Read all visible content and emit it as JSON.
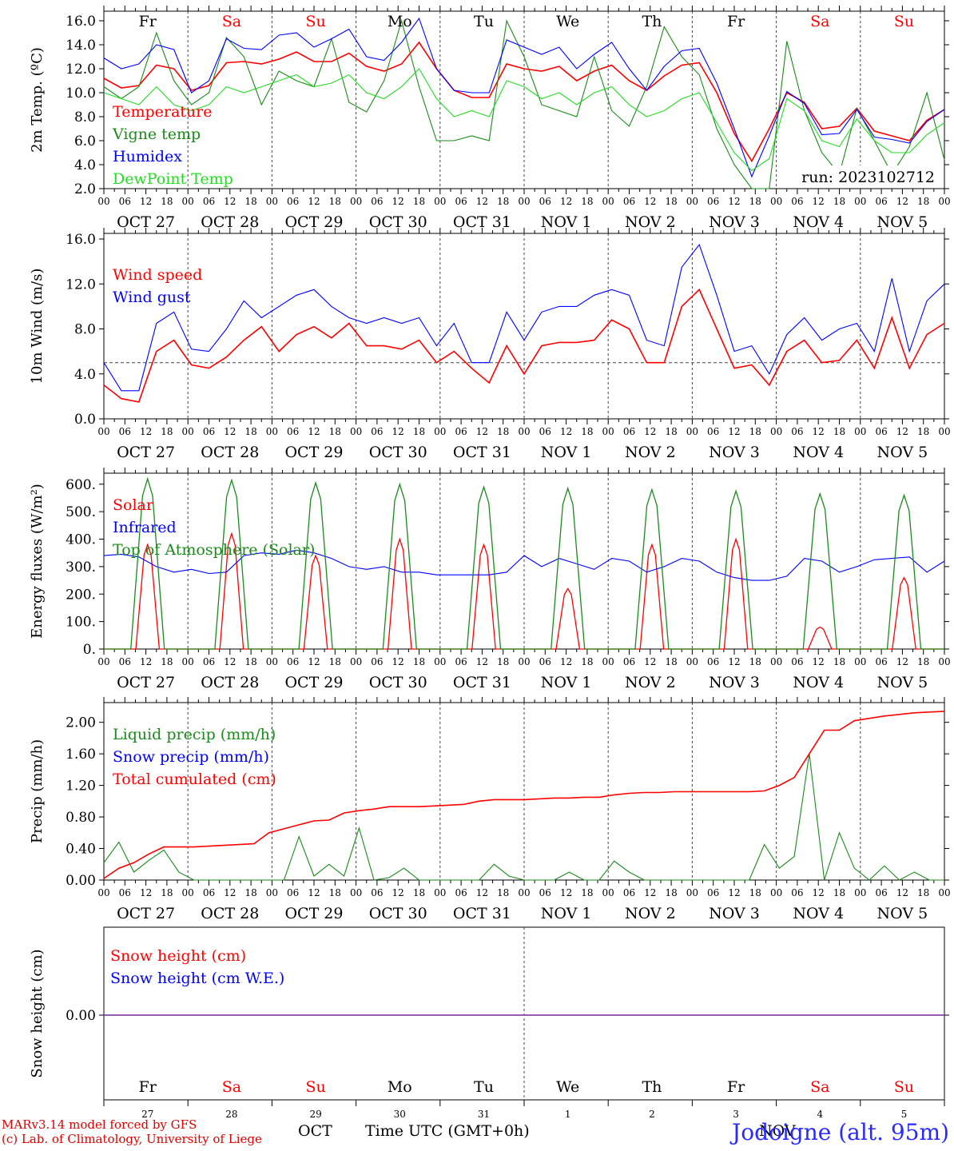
{
  "run_label": "run: 2023102712",
  "footer": {
    "credits_line1": "MARv3.14 model forced by GFS",
    "credits_line2": "(c) Lab. of Climatology, University of Liege",
    "month1": "OCT",
    "time_axis": "Time UTC (GMT+0h)",
    "month2": "NOV",
    "station": "Jodoigne (alt. 95m)"
  },
  "time_axis": {
    "hour_ticks": [
      "00",
      "06",
      "12",
      "18"
    ],
    "dates": [
      "OCT 27",
      "OCT 28",
      "OCT 29",
      "OCT 30",
      "OCT 31",
      "NOV  1",
      "NOV  2",
      "NOV  3",
      "NOV  4",
      "NOV  5"
    ],
    "weekdays": [
      "Fr",
      "Sa",
      "Su",
      "Mo",
      "Tu",
      "We",
      "Th",
      "Fr",
      "Sa",
      "Su"
    ],
    "weekend_flags": [
      false,
      true,
      true,
      false,
      false,
      false,
      false,
      false,
      true,
      true
    ],
    "day_numbers": [
      "27",
      "28",
      "29",
      "30",
      "31",
      "1",
      "2",
      "3",
      "4",
      "5"
    ]
  },
  "colors": {
    "red": "#ff0000",
    "green": "#1a8a1a",
    "blue": "#0000ff",
    "lightgreen": "#22dd22",
    "purple": "#8844aa"
  },
  "chart_data": [
    {
      "type": "line",
      "ylabel": "2m Temp. (ºC)",
      "ylim": [
        2.0,
        16.8
      ],
      "yticks": [
        "2.0",
        "4.0",
        "6.0",
        "8.0",
        "10.0",
        "12.0",
        "14.0",
        "16.0"
      ],
      "x_unit": "hours since OCT 27 00 UTC, 6-hourly",
      "series": [
        {
          "name": "Temperature",
          "color": "red",
          "values": [
            11.2,
            10.4,
            10.6,
            12.3,
            12.0,
            10.2,
            10.6,
            12.5,
            12.6,
            12.4,
            12.8,
            13.4,
            12.6,
            12.6,
            13.3,
            12.2,
            11.8,
            12.4,
            14.2,
            12.0,
            10.2,
            9.6,
            9.6,
            12.4,
            12.0,
            11.8,
            12.2,
            11.0,
            11.8,
            12.3,
            11.0,
            10.2,
            11.4,
            12.3,
            12.5,
            10.0,
            6.6,
            4.3,
            7.0,
            10.0,
            9.2,
            7.0,
            7.2,
            8.7,
            6.8,
            6.4,
            6.0,
            7.7,
            8.6
          ]
        },
        {
          "name": "Vigne temp",
          "color": "green",
          "values": [
            10.5,
            9.5,
            10.5,
            15.0,
            11.0,
            9.0,
            10.0,
            14.6,
            13.0,
            9.0,
            11.8,
            11.0,
            10.5,
            14.5,
            9.2,
            8.4,
            11.0,
            16.0,
            10.5,
            6.0,
            6.0,
            6.4,
            6.0,
            16.0,
            13.0,
            9.0,
            8.5,
            8.0,
            13.0,
            8.5,
            7.2,
            10.5,
            15.5,
            13.0,
            11.5,
            7.0,
            4.0,
            1.0,
            1.5,
            14.3,
            8.5,
            5.0,
            3.2,
            8.7,
            6.0,
            3.2,
            5.5,
            10.0,
            4.4
          ]
        },
        {
          "name": "Humidex",
          "color": "blue",
          "values": [
            12.9,
            12.0,
            12.4,
            14.0,
            13.6,
            10.0,
            11.0,
            14.5,
            13.7,
            13.6,
            14.8,
            15.0,
            13.8,
            14.5,
            15.3,
            13.0,
            12.7,
            14.2,
            16.2,
            12.0,
            10.2,
            10.0,
            10.0,
            14.4,
            13.8,
            13.2,
            13.8,
            12.0,
            13.2,
            14.2,
            12.0,
            10.2,
            12.2,
            13.5,
            13.7,
            10.8,
            7.0,
            3.0,
            6.4,
            10.1,
            9.1,
            6.5,
            6.6,
            8.6,
            6.3,
            6.1,
            5.8,
            7.6,
            8.6
          ]
        },
        {
          "name": "DewPoint Temp",
          "color": "lightgreen",
          "values": [
            10.0,
            9.5,
            9.0,
            10.5,
            9.0,
            8.5,
            9.0,
            10.5,
            10.0,
            10.5,
            11.0,
            11.5,
            10.5,
            10.8,
            11.5,
            10.0,
            9.5,
            10.5,
            12.0,
            9.5,
            8.0,
            8.5,
            8.0,
            11.0,
            10.5,
            9.5,
            10.0,
            9.0,
            10.0,
            10.5,
            9.0,
            8.0,
            8.5,
            9.5,
            10.0,
            7.5,
            5.0,
            3.5,
            4.5,
            9.5,
            8.5,
            6.0,
            5.5,
            7.8,
            6.0,
            5.0,
            5.0,
            6.5,
            7.5
          ]
        }
      ]
    },
    {
      "type": "line",
      "ylabel": "10m Wind (m/s)",
      "ylim": [
        0,
        16.5
      ],
      "yticks": [
        "0.0",
        "4.0",
        "8.0",
        "12.0",
        "16.0"
      ],
      "reference_line": 5.0,
      "series": [
        {
          "name": "Wind speed",
          "color": "red",
          "values": [
            3.0,
            1.8,
            1.5,
            6.0,
            7.0,
            4.8,
            4.5,
            5.5,
            7.0,
            8.2,
            6.0,
            7.5,
            8.2,
            7.2,
            8.5,
            6.5,
            6.5,
            6.2,
            7.0,
            5.0,
            6.0,
            4.5,
            3.2,
            6.5,
            4.0,
            6.5,
            6.8,
            6.8,
            7.0,
            8.8,
            8.0,
            5.0,
            5.0,
            10.0,
            11.5,
            8.0,
            4.5,
            4.8,
            3.0,
            6.0,
            7.0,
            5.0,
            5.2,
            7.0,
            4.5,
            9.0,
            4.5,
            7.5,
            8.5
          ]
        },
        {
          "name": "Wind gust",
          "color": "blue",
          "values": [
            5.0,
            2.5,
            2.5,
            8.5,
            9.5,
            6.2,
            6.0,
            8.0,
            10.5,
            9.0,
            10.0,
            11.0,
            11.5,
            10.0,
            9.0,
            8.5,
            9.0,
            8.5,
            9.0,
            6.5,
            8.5,
            5.0,
            5.0,
            9.5,
            7.0,
            9.5,
            10.0,
            10.0,
            11.0,
            11.5,
            11.0,
            7.0,
            6.5,
            13.5,
            15.5,
            11.0,
            6.0,
            6.5,
            4.0,
            7.5,
            9.0,
            7.0,
            8.0,
            8.5,
            6.0,
            12.5,
            6.0,
            10.5,
            12.0
          ]
        }
      ]
    },
    {
      "type": "line",
      "ylabel": "Energy fluxes (W/m²)",
      "ylim": [
        0,
        640
      ],
      "yticks": [
        "0.",
        "100.",
        "200.",
        "300.",
        "400.",
        "500.",
        "600."
      ],
      "series": [
        {
          "name": "Solar",
          "color": "red",
          "peaks": [
            380,
            420,
            340,
            400,
            380,
            220,
            380,
            400,
            80,
            260
          ]
        },
        {
          "name": "Infrared",
          "color": "blue",
          "values": [
            340,
            345,
            335,
            300,
            280,
            290,
            275,
            280,
            340,
            350,
            345,
            360,
            350,
            330,
            300,
            290,
            300,
            280,
            280,
            270,
            270,
            270,
            270,
            280,
            340,
            300,
            330,
            310,
            290,
            330,
            320,
            280,
            300,
            330,
            320,
            280,
            260,
            250,
            250,
            265,
            330,
            320,
            280,
            300,
            325,
            330,
            335,
            280,
            320
          ]
        },
        {
          "name": "Top of Atmosphere (Solar)",
          "color": "green",
          "peaks": [
            620,
            615,
            605,
            600,
            590,
            585,
            580,
            575,
            565,
            560
          ]
        }
      ]
    },
    {
      "type": "line",
      "ylabel": "Precip (mm/h)",
      "ylim": [
        0,
        2.25
      ],
      "yticks": [
        "0.00",
        "0.40",
        "0.80",
        "1.20",
        "1.60",
        "2.00"
      ],
      "series": [
        {
          "name": "Liquid precip (mm/h)",
          "color": "green",
          "values": [
            0.22,
            0.48,
            0.1,
            0.25,
            0.38,
            0.1,
            0.0,
            0.0,
            0.0,
            0.0,
            0.0,
            0.0,
            0.0,
            0.55,
            0.05,
            0.2,
            0.05,
            0.66,
            0.0,
            0.03,
            0.15,
            0.0,
            0.0,
            0.0,
            0.0,
            0.0,
            0.2,
            0.05,
            0.0,
            0.0,
            0.0,
            0.1,
            0.0,
            0.0,
            0.24,
            0.1,
            0.0,
            0.0,
            0.0,
            0.0,
            0.0,
            0.0,
            0.0,
            0.0,
            0.45,
            0.15,
            0.3,
            1.6,
            0.0,
            0.6,
            0.15,
            0.0,
            0.18,
            0.0,
            0.1,
            0.0,
            0.0
          ]
        },
        {
          "name": "Snow precip (mm/h)",
          "color": "blue",
          "values": []
        },
        {
          "name": "Total cumulated (cm)",
          "color": "red",
          "values": [
            0.02,
            0.15,
            0.22,
            0.33,
            0.42,
            0.42,
            0.42,
            0.43,
            0.44,
            0.45,
            0.46,
            0.6,
            0.65,
            0.7,
            0.75,
            0.76,
            0.85,
            0.88,
            0.9,
            0.93,
            0.93,
            0.93,
            0.94,
            0.95,
            0.96,
            1.0,
            1.02,
            1.02,
            1.02,
            1.03,
            1.04,
            1.04,
            1.05,
            1.05,
            1.08,
            1.1,
            1.11,
            1.11,
            1.12,
            1.12,
            1.12,
            1.12,
            1.12,
            1.12,
            1.13,
            1.2,
            1.3,
            1.6,
            1.9,
            1.9,
            2.02,
            2.05,
            2.08,
            2.1,
            2.12,
            2.13,
            2.14
          ]
        }
      ]
    },
    {
      "type": "line",
      "ylabel": "Snow height (cm)",
      "yticks": [
        "0.00"
      ],
      "series": [
        {
          "name": "Snow height (cm)",
          "color": "red",
          "values": [
            0.0
          ]
        },
        {
          "name": "Snow height (cm W.E.)",
          "color": "blue",
          "values": [
            0.0
          ]
        }
      ]
    }
  ]
}
